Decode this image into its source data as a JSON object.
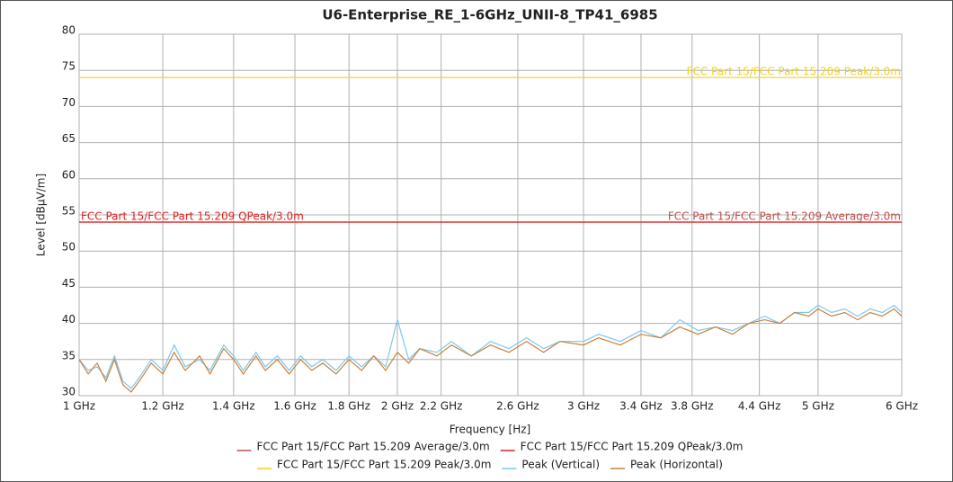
{
  "chart_data": {
    "type": "line",
    "title": "U6-Enterprise_RE_1-6GHz_UNII-8_TP41_6985",
    "x_label": "Frequency [Hz]",
    "y_label": "Level [dBµV/m]",
    "xscale": "log",
    "grid": true,
    "xlim": [
      1000000000.0,
      6000000000.0
    ],
    "ylim": [
      30,
      80
    ],
    "xticks": [
      {
        "value": 1000000000.0,
        "label": "1 GHz"
      },
      {
        "value": 1200000000.0,
        "label": "1.2 GHz"
      },
      {
        "value": 1400000000.0,
        "label": "1.4 GHz"
      },
      {
        "value": 1600000000.0,
        "label": "1.6 GHz"
      },
      {
        "value": 1800000000.0,
        "label": "1.8 GHz"
      },
      {
        "value": 2000000000.0,
        "label": "2 GHz"
      },
      {
        "value": 2200000000.0,
        "label": "2.2 GHz"
      },
      {
        "value": 2600000000.0,
        "label": "2.6 GHz"
      },
      {
        "value": 3000000000.0,
        "label": "3 GHz"
      },
      {
        "value": 3400000000.0,
        "label": "3.4 GHz"
      },
      {
        "value": 3800000000.0,
        "label": "3.8 GHz"
      },
      {
        "value": 4400000000.0,
        "label": "4.4 GHz"
      },
      {
        "value": 5000000000.0,
        "label": "5 GHz"
      },
      {
        "value": 6000000000.0,
        "label": "6 GHz"
      }
    ],
    "yticks": [
      30,
      35,
      40,
      45,
      50,
      55,
      60,
      65,
      70,
      75,
      80
    ],
    "series": [
      {
        "name": "FCC Part 15/FCC Part 15.209 Average/3.0m",
        "color": "#c0504d",
        "x": [
          1000000000.0,
          6000000000.0
        ],
        "values": [
          54,
          54
        ]
      },
      {
        "name": "FCC Part 15/FCC Part 15.209 QPeak/3.0m",
        "color": "#e02020",
        "x": [
          1000000000.0,
          6000000000.0
        ],
        "values": [
          54,
          54
        ]
      },
      {
        "name": "FCC Part 15/FCC Part 15.209 Peak/3.0m",
        "color": "#f0d020",
        "x": [
          1000000000.0,
          6000000000.0
        ],
        "values": [
          74,
          74
        ]
      },
      {
        "name": "Peak (Vertical)",
        "color": "#7ec8ec",
        "x": [
          1000000000.0,
          1020000000.0,
          1040000000.0,
          1060000000.0,
          1080000000.0,
          1100000000.0,
          1120000000.0,
          1140000000.0,
          1170000000.0,
          1200000000.0,
          1230000000.0,
          1260000000.0,
          1300000000.0,
          1330000000.0,
          1370000000.0,
          1400000000.0,
          1430000000.0,
          1470000000.0,
          1500000000.0,
          1540000000.0,
          1580000000.0,
          1620000000.0,
          1660000000.0,
          1700000000.0,
          1750000000.0,
          1800000000.0,
          1850000000.0,
          1900000000.0,
          1950000000.0,
          2000000000.0,
          2050000000.0,
          2100000000.0,
          2180000000.0,
          2250000000.0,
          2350000000.0,
          2450000000.0,
          2550000000.0,
          2650000000.0,
          2750000000.0,
          2850000000.0,
          3000000000.0,
          3100000000.0,
          3250000000.0,
          3400000000.0,
          3550000000.0,
          3700000000.0,
          3850000000.0,
          4000000000.0,
          4150000000.0,
          4300000000.0,
          4450000000.0,
          4600000000.0,
          4750000000.0,
          4900000000.0,
          5000000000.0,
          5150000000.0,
          5300000000.0,
          5450000000.0,
          5600000000.0,
          5750000000.0,
          5900000000.0,
          6000000000.0
        ],
        "values": [
          35,
          33.5,
          34,
          32.5,
          35.5,
          32,
          31,
          32.5,
          35,
          33.5,
          37,
          34,
          35,
          33.5,
          37,
          35.5,
          33.5,
          36,
          34,
          35.5,
          33.5,
          35.5,
          34,
          35,
          33.5,
          35.5,
          34,
          35.5,
          34,
          40.5,
          35,
          36.5,
          36,
          37.5,
          35.5,
          37.5,
          36.5,
          38,
          36.5,
          37.5,
          37.5,
          38.5,
          37.5,
          39,
          38,
          40.5,
          39,
          39.5,
          39,
          40,
          41,
          40,
          41.5,
          41.5,
          42.5,
          41.5,
          42,
          41,
          42,
          41.5,
          42.5,
          41.5
        ]
      },
      {
        "name": "Peak (Horizontal)",
        "color": "#c8823c",
        "x": [
          1000000000.0,
          1020000000.0,
          1040000000.0,
          1060000000.0,
          1080000000.0,
          1100000000.0,
          1120000000.0,
          1140000000.0,
          1170000000.0,
          1200000000.0,
          1230000000.0,
          1260000000.0,
          1300000000.0,
          1330000000.0,
          1370000000.0,
          1400000000.0,
          1430000000.0,
          1470000000.0,
          1500000000.0,
          1540000000.0,
          1580000000.0,
          1620000000.0,
          1660000000.0,
          1700000000.0,
          1750000000.0,
          1800000000.0,
          1850000000.0,
          1900000000.0,
          1950000000.0,
          2000000000.0,
          2050000000.0,
          2100000000.0,
          2180000000.0,
          2250000000.0,
          2350000000.0,
          2450000000.0,
          2550000000.0,
          2650000000.0,
          2750000000.0,
          2850000000.0,
          3000000000.0,
          3100000000.0,
          3250000000.0,
          3400000000.0,
          3550000000.0,
          3700000000.0,
          3850000000.0,
          4000000000.0,
          4150000000.0,
          4300000000.0,
          4450000000.0,
          4600000000.0,
          4750000000.0,
          4900000000.0,
          5000000000.0,
          5150000000.0,
          5300000000.0,
          5450000000.0,
          5600000000.0,
          5750000000.0,
          5900000000.0,
          6000000000.0
        ],
        "values": [
          35,
          33,
          34.5,
          32,
          35,
          31.5,
          30.5,
          32,
          34.5,
          33,
          36,
          33.5,
          35.5,
          33,
          36.5,
          35,
          33,
          35.5,
          33.5,
          35,
          33,
          35,
          33.5,
          34.5,
          33,
          35,
          33.5,
          35.5,
          33.5,
          36,
          34.5,
          36.5,
          35.5,
          37,
          35.5,
          37,
          36,
          37.5,
          36,
          37.5,
          37,
          38,
          37,
          38.5,
          38,
          39.5,
          38.5,
          39.5,
          38.5,
          40,
          40.5,
          40,
          41.5,
          41,
          42,
          41,
          41.5,
          40.5,
          41.5,
          41,
          42,
          41
        ]
      }
    ]
  }
}
